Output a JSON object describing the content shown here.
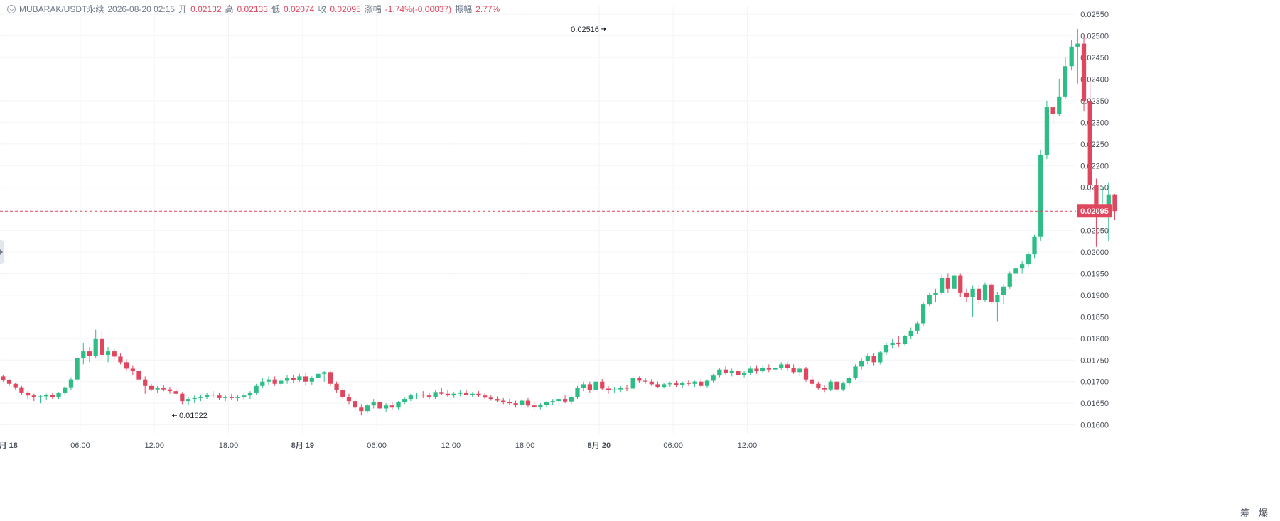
{
  "header": {
    "symbol": "MUBARAK/USDT永续",
    "datetime": "2026-08-20 02:15",
    "open_label": "开",
    "open": "0.02132",
    "high_label": "高",
    "high": "0.02133",
    "low_label": "低",
    "low": "0.02074",
    "close_label": "收",
    "close": "0.02095",
    "change_label": "涨幅",
    "change": "-1.74%(-0.00037)",
    "amplitude_label": "振幅",
    "amplitude": "2.77%"
  },
  "corner_buttons": {
    "left": "筹",
    "right": "爆"
  },
  "colors": {
    "up": "#2ebd85",
    "down": "#e0475f",
    "grid": "#f3f4f6",
    "axis_text": "#474d57",
    "price_line": "#e0475f"
  },
  "chart_data": {
    "type": "candlestick",
    "interval_minutes": 30,
    "ylim": [
      0.01578,
      0.0257
    ],
    "y_ticks": [
      "0.01600",
      "0.01650",
      "0.01700",
      "0.01750",
      "0.01800",
      "0.01850",
      "0.01900",
      "0.01950",
      "0.02000",
      "0.02050",
      "0.02100",
      "0.02150",
      "0.02200",
      "0.02250",
      "0.02300",
      "0.02350",
      "0.02400",
      "0.02450",
      "0.02500",
      "0.02550"
    ],
    "x_axis_start": "2026-08-17 23:30",
    "x_axis_end": "2026-08-21 14:30",
    "x_ticks": [
      {
        "label": "8月 18",
        "time": "2026-08-18 00:00",
        "bold": true
      },
      {
        "label": "06:00",
        "time": "2026-08-18 06:00"
      },
      {
        "label": "12:00",
        "time": "2026-08-18 12:00"
      },
      {
        "label": "18:00",
        "time": "2026-08-18 18:00"
      },
      {
        "label": "8月 19",
        "time": "2026-08-19 00:00",
        "bold": true
      },
      {
        "label": "06:00",
        "time": "2026-08-19 06:00"
      },
      {
        "label": "12:00",
        "time": "2026-08-19 12:00"
      },
      {
        "label": "18:00",
        "time": "2026-08-19 18:00"
      },
      {
        "label": "8月 20",
        "time": "2026-08-20 00:00",
        "bold": true
      },
      {
        "label": "06:00",
        "time": "2026-08-20 06:00"
      },
      {
        "label": "12:00",
        "time": "2026-08-20 12:00"
      }
    ],
    "current_price": "0.02095",
    "annotations": [
      {
        "text": "0.02516",
        "time": "2026-08-20 00:30",
        "price": 0.02516,
        "side": "left"
      },
      {
        "text": "0.01622",
        "time": "2026-08-18 13:00",
        "price": 0.01622,
        "side": "right"
      }
    ],
    "candles_start": "2026-08-17 23:30",
    "candles": [
      [
        0.01712,
        0.01716,
        0.017,
        0.01703
      ],
      [
        0.01703,
        0.01706,
        0.0169,
        0.01695
      ],
      [
        0.01695,
        0.01698,
        0.01682,
        0.01687
      ],
      [
        0.01687,
        0.0169,
        0.0167,
        0.01675
      ],
      [
        0.01675,
        0.01678,
        0.0166,
        0.01668
      ],
      [
        0.01668,
        0.01672,
        0.01655,
        0.01664
      ],
      [
        0.01664,
        0.0167,
        0.0165,
        0.01666
      ],
      [
        0.01666,
        0.01672,
        0.01658,
        0.01669
      ],
      [
        0.01669,
        0.01674,
        0.0166,
        0.01665
      ],
      [
        0.01665,
        0.01676,
        0.0166,
        0.01674
      ],
      [
        0.01674,
        0.0169,
        0.01668,
        0.01687
      ],
      [
        0.01687,
        0.0171,
        0.0168,
        0.01705
      ],
      [
        0.01705,
        0.0176,
        0.017,
        0.01755
      ],
      [
        0.01755,
        0.0179,
        0.0174,
        0.0177
      ],
      [
        0.0177,
        0.0178,
        0.01745,
        0.0176
      ],
      [
        0.0176,
        0.0182,
        0.01755,
        0.018
      ],
      [
        0.018,
        0.01815,
        0.0175,
        0.01762
      ],
      [
        0.01762,
        0.0178,
        0.01745,
        0.0177
      ],
      [
        0.0177,
        0.01778,
        0.01752,
        0.01758
      ],
      [
        0.01758,
        0.01765,
        0.0174,
        0.01745
      ],
      [
        0.01745,
        0.01752,
        0.01725,
        0.0173
      ],
      [
        0.0173,
        0.01738,
        0.01715,
        0.01725
      ],
      [
        0.01725,
        0.0173,
        0.017,
        0.01705
      ],
      [
        0.01705,
        0.01712,
        0.01672,
        0.0169
      ],
      [
        0.0169,
        0.01695,
        0.01678,
        0.01682
      ],
      [
        0.01682,
        0.0169,
        0.01675,
        0.01685
      ],
      [
        0.01685,
        0.01692,
        0.01678,
        0.01682
      ],
      [
        0.01682,
        0.01688,
        0.01672,
        0.01678
      ],
      [
        0.01678,
        0.01684,
        0.01668,
        0.01672
      ],
      [
        0.01672,
        0.01676,
        0.01648,
        0.01655
      ],
      [
        0.01655,
        0.01665,
        0.01645,
        0.0166
      ],
      [
        0.0166,
        0.01668,
        0.0165,
        0.01662
      ],
      [
        0.01662,
        0.0167,
        0.01655,
        0.01665
      ],
      [
        0.01665,
        0.01675,
        0.0166,
        0.0167
      ],
      [
        0.0167,
        0.01678,
        0.01662,
        0.01668
      ],
      [
        0.01668,
        0.01674,
        0.01658,
        0.01662
      ],
      [
        0.01662,
        0.0167,
        0.01655,
        0.01665
      ],
      [
        0.01665,
        0.01672,
        0.01658,
        0.01662
      ],
      [
        0.01662,
        0.0167,
        0.01655,
        0.01664
      ],
      [
        0.01664,
        0.01672,
        0.01658,
        0.01668
      ],
      [
        0.01668,
        0.01678,
        0.0166,
        0.01675
      ],
      [
        0.01675,
        0.01695,
        0.0167,
        0.0169
      ],
      [
        0.0169,
        0.01708,
        0.01685,
        0.017
      ],
      [
        0.017,
        0.01712,
        0.01692,
        0.01705
      ],
      [
        0.01705,
        0.01712,
        0.0169,
        0.01695
      ],
      [
        0.01695,
        0.01708,
        0.01688,
        0.01702
      ],
      [
        0.01702,
        0.01715,
        0.01695,
        0.01708
      ],
      [
        0.01708,
        0.01716,
        0.01698,
        0.01704
      ],
      [
        0.01704,
        0.01718,
        0.017,
        0.01712
      ],
      [
        0.01712,
        0.0172,
        0.0169,
        0.017
      ],
      [
        0.017,
        0.01712,
        0.01692,
        0.01708
      ],
      [
        0.01708,
        0.01725,
        0.01702,
        0.01718
      ],
      [
        0.01718,
        0.01725,
        0.017,
        0.01722
      ],
      [
        0.01722,
        0.01726,
        0.0169,
        0.01695
      ],
      [
        0.01695,
        0.017,
        0.01675,
        0.0168
      ],
      [
        0.0168,
        0.01685,
        0.0166,
        0.01665
      ],
      [
        0.01665,
        0.01672,
        0.01648,
        0.01655
      ],
      [
        0.01655,
        0.0166,
        0.01635,
        0.0164
      ],
      [
        0.0164,
        0.01648,
        0.01622,
        0.01632
      ],
      [
        0.01632,
        0.01648,
        0.01628,
        0.01645
      ],
      [
        0.01645,
        0.0166,
        0.01638,
        0.01652
      ],
      [
        0.01652,
        0.01656,
        0.0163,
        0.01638
      ],
      [
        0.01638,
        0.0165,
        0.0163,
        0.01645
      ],
      [
        0.01645,
        0.01652,
        0.01635,
        0.0164
      ],
      [
        0.0164,
        0.01655,
        0.01636,
        0.01652
      ],
      [
        0.01652,
        0.01665,
        0.01648,
        0.0166
      ],
      [
        0.0166,
        0.01672,
        0.01655,
        0.01668
      ],
      [
        0.01668,
        0.01675,
        0.0166,
        0.0167
      ],
      [
        0.0167,
        0.01678,
        0.01662,
        0.01668
      ],
      [
        0.01668,
        0.01674,
        0.0166,
        0.01664
      ],
      [
        0.01664,
        0.0168,
        0.0166,
        0.01676
      ],
      [
        0.01676,
        0.01686,
        0.01668,
        0.01672
      ],
      [
        0.01672,
        0.0168,
        0.01665,
        0.01668
      ],
      [
        0.01668,
        0.01676,
        0.01662,
        0.01672
      ],
      [
        0.01672,
        0.0168,
        0.01666,
        0.01675
      ],
      [
        0.01675,
        0.01682,
        0.01668,
        0.0167
      ],
      [
        0.0167,
        0.01676,
        0.01664,
        0.01672
      ],
      [
        0.01672,
        0.01678,
        0.01664,
        0.01668
      ],
      [
        0.01668,
        0.01674,
        0.0166,
        0.01663
      ],
      [
        0.01663,
        0.0167,
        0.01656,
        0.0166
      ],
      [
        0.0166,
        0.01666,
        0.01652,
        0.01656
      ],
      [
        0.01656,
        0.01662,
        0.01648,
        0.01652
      ],
      [
        0.01652,
        0.0166,
        0.01645,
        0.0165
      ],
      [
        0.0165,
        0.01656,
        0.0164,
        0.01646
      ],
      [
        0.01646,
        0.0166,
        0.01642,
        0.01656
      ],
      [
        0.01656,
        0.01662,
        0.0164,
        0.01645
      ],
      [
        0.01645,
        0.01652,
        0.01636,
        0.01642
      ],
      [
        0.01642,
        0.0165,
        0.01636,
        0.01646
      ],
      [
        0.01646,
        0.01655,
        0.0164,
        0.01652
      ],
      [
        0.01652,
        0.0166,
        0.01646,
        0.01655
      ],
      [
        0.01655,
        0.01665,
        0.01648,
        0.0166
      ],
      [
        0.0166,
        0.01668,
        0.0165,
        0.01654
      ],
      [
        0.01654,
        0.01668,
        0.01648,
        0.01665
      ],
      [
        0.01665,
        0.0169,
        0.0166,
        0.01685
      ],
      [
        0.01685,
        0.017,
        0.01678,
        0.01694
      ],
      [
        0.01694,
        0.017,
        0.01675,
        0.0168
      ],
      [
        0.0168,
        0.01705,
        0.01675,
        0.017
      ],
      [
        0.017,
        0.01706,
        0.0168,
        0.01684
      ],
      [
        0.01684,
        0.0169,
        0.01672,
        0.0168
      ],
      [
        0.0168,
        0.01688,
        0.01674,
        0.01682
      ],
      [
        0.01682,
        0.0169,
        0.01676,
        0.01686
      ],
      [
        0.01686,
        0.01692,
        0.01678,
        0.01684
      ],
      [
        0.01684,
        0.0171,
        0.01682,
        0.01708
      ],
      [
        0.01708,
        0.01712,
        0.01698,
        0.01702
      ],
      [
        0.01702,
        0.01708,
        0.01695,
        0.017
      ],
      [
        0.017,
        0.01706,
        0.0169,
        0.01694
      ],
      [
        0.01694,
        0.017,
        0.01685,
        0.01688
      ],
      [
        0.01688,
        0.01698,
        0.01684,
        0.01694
      ],
      [
        0.01694,
        0.017,
        0.01688,
        0.01696
      ],
      [
        0.01696,
        0.01702,
        0.01688,
        0.01692
      ],
      [
        0.01692,
        0.017,
        0.01686,
        0.01698
      ],
      [
        0.01698,
        0.01704,
        0.0169,
        0.01695
      ],
      [
        0.01695,
        0.01702,
        0.01688,
        0.017
      ],
      [
        0.017,
        0.01706,
        0.01686,
        0.0169
      ],
      [
        0.0169,
        0.01705,
        0.01686,
        0.01702
      ],
      [
        0.01702,
        0.01718,
        0.01698,
        0.01714
      ],
      [
        0.01714,
        0.01732,
        0.0171,
        0.01728
      ],
      [
        0.01728,
        0.01735,
        0.01715,
        0.0172
      ],
      [
        0.0172,
        0.0173,
        0.01712,
        0.01725
      ],
      [
        0.01725,
        0.0173,
        0.0171,
        0.01715
      ],
      [
        0.01715,
        0.01725,
        0.0171,
        0.0172
      ],
      [
        0.0172,
        0.01735,
        0.01715,
        0.0173
      ],
      [
        0.0173,
        0.01738,
        0.01718,
        0.01724
      ],
      [
        0.01724,
        0.01736,
        0.0172,
        0.01732
      ],
      [
        0.01732,
        0.0174,
        0.01722,
        0.01728
      ],
      [
        0.01728,
        0.01736,
        0.0172,
        0.01732
      ],
      [
        0.01732,
        0.01745,
        0.01728,
        0.0174
      ],
      [
        0.0174,
        0.01745,
        0.01726,
        0.01732
      ],
      [
        0.01732,
        0.0174,
        0.01718,
        0.01722
      ],
      [
        0.01722,
        0.01734,
        0.01712,
        0.0173
      ],
      [
        0.0173,
        0.01734,
        0.017,
        0.01705
      ],
      [
        0.01705,
        0.01712,
        0.0169,
        0.01695
      ],
      [
        0.01695,
        0.017,
        0.01682,
        0.01686
      ],
      [
        0.01686,
        0.01692,
        0.01676,
        0.01682
      ],
      [
        0.01682,
        0.01705,
        0.01678,
        0.017
      ],
      [
        0.017,
        0.01705,
        0.01678,
        0.01682
      ],
      [
        0.01682,
        0.017,
        0.01678,
        0.01696
      ],
      [
        0.01696,
        0.01712,
        0.0169,
        0.01708
      ],
      [
        0.01708,
        0.0174,
        0.01705,
        0.01735
      ],
      [
        0.01735,
        0.01755,
        0.01728,
        0.01748
      ],
      [
        0.01748,
        0.01765,
        0.0174,
        0.0176
      ],
      [
        0.0176,
        0.01765,
        0.01738,
        0.01745
      ],
      [
        0.01745,
        0.0177,
        0.0174,
        0.01768
      ],
      [
        0.01768,
        0.0179,
        0.01762,
        0.01785
      ],
      [
        0.01785,
        0.018,
        0.01778,
        0.0179
      ],
      [
        0.0179,
        0.01805,
        0.0178,
        0.01788
      ],
      [
        0.01788,
        0.01808,
        0.01784,
        0.01805
      ],
      [
        0.01805,
        0.01825,
        0.01798,
        0.01818
      ],
      [
        0.01818,
        0.0184,
        0.0181,
        0.01835
      ],
      [
        0.01835,
        0.01885,
        0.0183,
        0.0188
      ],
      [
        0.0188,
        0.01905,
        0.01875,
        0.019
      ],
      [
        0.019,
        0.01915,
        0.01885,
        0.01905
      ],
      [
        0.01905,
        0.01948,
        0.019,
        0.0194
      ],
      [
        0.0194,
        0.0195,
        0.01905,
        0.01915
      ],
      [
        0.01915,
        0.01952,
        0.01905,
        0.01945
      ],
      [
        0.01945,
        0.0195,
        0.01895,
        0.01905
      ],
      [
        0.01905,
        0.01915,
        0.01885,
        0.01895
      ],
      [
        0.01895,
        0.01922,
        0.0185,
        0.01915
      ],
      [
        0.01915,
        0.01922,
        0.0188,
        0.0189
      ],
      [
        0.0189,
        0.0193,
        0.01885,
        0.01925
      ],
      [
        0.01925,
        0.0193,
        0.0188,
        0.01885
      ],
      [
        0.01885,
        0.01908,
        0.0184,
        0.019
      ],
      [
        0.019,
        0.01925,
        0.0188,
        0.0192
      ],
      [
        0.0192,
        0.01955,
        0.01915,
        0.0195
      ],
      [
        0.0195,
        0.01975,
        0.01928,
        0.01962
      ],
      [
        0.01962,
        0.0198,
        0.0195,
        0.01972
      ],
      [
        0.01972,
        0.02,
        0.01965,
        0.01995
      ],
      [
        0.01995,
        0.0204,
        0.01985,
        0.02035
      ],
      [
        0.02035,
        0.02235,
        0.02025,
        0.02225
      ],
      [
        0.02225,
        0.0235,
        0.02215,
        0.02335
      ],
      [
        0.02335,
        0.02345,
        0.02295,
        0.0232
      ],
      [
        0.0232,
        0.024,
        0.02315,
        0.0236
      ],
      [
        0.0236,
        0.0245,
        0.02355,
        0.0243
      ],
      [
        0.0243,
        0.0249,
        0.0242,
        0.02475
      ],
      [
        0.02475,
        0.02516,
        0.0239,
        0.02482
      ],
      [
        0.02482,
        0.025,
        0.02325,
        0.0235
      ],
      [
        0.0235,
        0.02405,
        0.0214,
        0.02155
      ],
      [
        0.02155,
        0.0217,
        0.02012,
        0.0209
      ],
      [
        0.0209,
        0.0215,
        0.0208,
        0.021
      ],
      [
        0.021,
        0.0216,
        0.02025,
        0.02132
      ],
      [
        0.02132,
        0.02133,
        0.02074,
        0.02095
      ]
    ]
  }
}
